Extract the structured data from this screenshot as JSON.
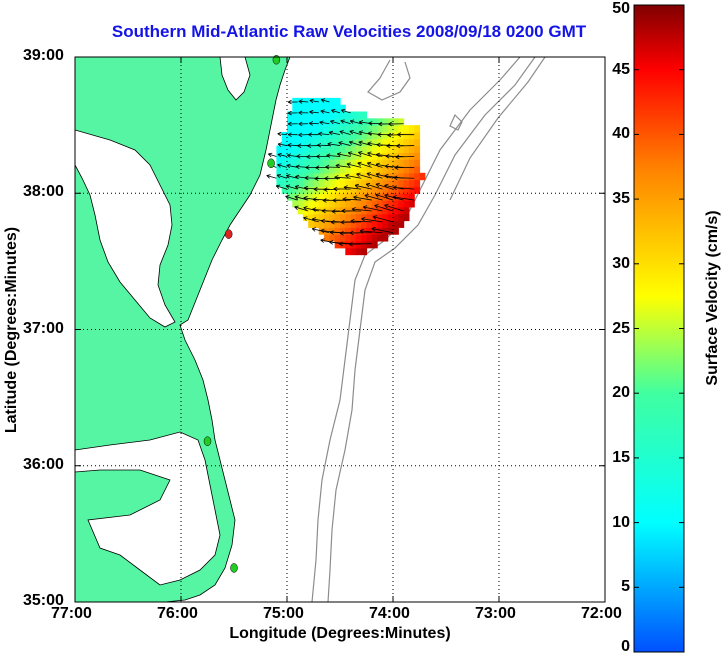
{
  "chart_data": {
    "type": "heatmap",
    "title": "Southern Mid-Atlantic Raw Velocities 2008/09/18 0200 GMT",
    "xlabel": "Longitude (Degrees:Minutes)",
    "ylabel": "Latitude (Degrees:Minutes)",
    "xlim": [
      -77,
      -72
    ],
    "ylim": [
      35,
      39
    ],
    "x_tick_labels": [
      "77:00",
      "76:00",
      "75:00",
      "74:00",
      "73:00",
      "72:00"
    ],
    "y_tick_labels": [
      "35:00",
      "36:00",
      "37:00",
      "38:00",
      "39:00"
    ],
    "grid": true,
    "colorbar": {
      "label": "Surface Velocity (cm/s)",
      "range": [
        0,
        50
      ],
      "tick_labels": [
        "0",
        "5",
        "10",
        "15",
        "20",
        "25",
        "30",
        "35",
        "40",
        "45",
        "50"
      ]
    },
    "velocity_field": {
      "description_of_pattern": "slow velocities near 38.4N 74.8W increasing to ~45-50 cm/s near 37.6N 74.3W",
      "slow_center": {
        "lon": -74.8,
        "lat": 38.45,
        "speed": 10
      },
      "fast_center": {
        "lon": -74.25,
        "lat": 37.6,
        "speed": 48
      }
    },
    "stations": [
      {
        "lon": -75.1,
        "lat": 38.98,
        "color": "#22cc22"
      },
      {
        "lon": -75.15,
        "lat": 38.22,
        "color": "#22cc22"
      },
      {
        "lon": -75.55,
        "lat": 37.7,
        "color": "#dd2222"
      },
      {
        "lon": -75.75,
        "lat": 36.18,
        "color": "#22cc22"
      },
      {
        "lon": -75.5,
        "lat": 35.25,
        "color": "#22cc22"
      }
    ],
    "colors": {
      "land": "#55f5a3",
      "title": "#1414e6",
      "bathymetry": "#909090"
    }
  }
}
